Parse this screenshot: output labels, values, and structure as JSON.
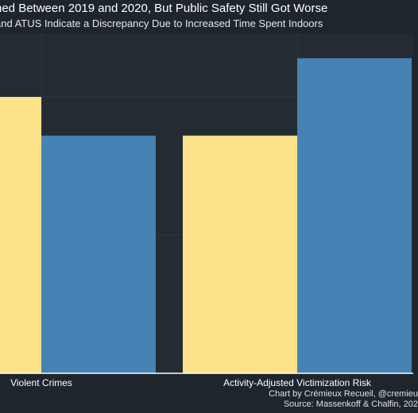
{
  "chart_data": {
    "type": "bar",
    "title": "ned Between 2019 and 2020, But Public Safety Still Got Worse",
    "subtitle": "and ATUS Indicate a Discrepancy Due to Increased Time Spent Indoors",
    "categories": [
      "Violent Crimes",
      "Activity-Adjusted Victimization Risk"
    ],
    "series": [
      {
        "color": "#fce38a",
        "values": [
          1.0,
          0.86
        ]
      },
      {
        "color": "#4682b4",
        "values": [
          0.86,
          1.14
        ]
      }
    ],
    "ylim": [
      0,
      1.23
    ],
    "grid": true,
    "legend": "none",
    "caption_lines": [
      "Chart by Crémieux Recueil, @cremieu",
      "Source: Massenkoff & Chalfin, 202"
    ]
  }
}
